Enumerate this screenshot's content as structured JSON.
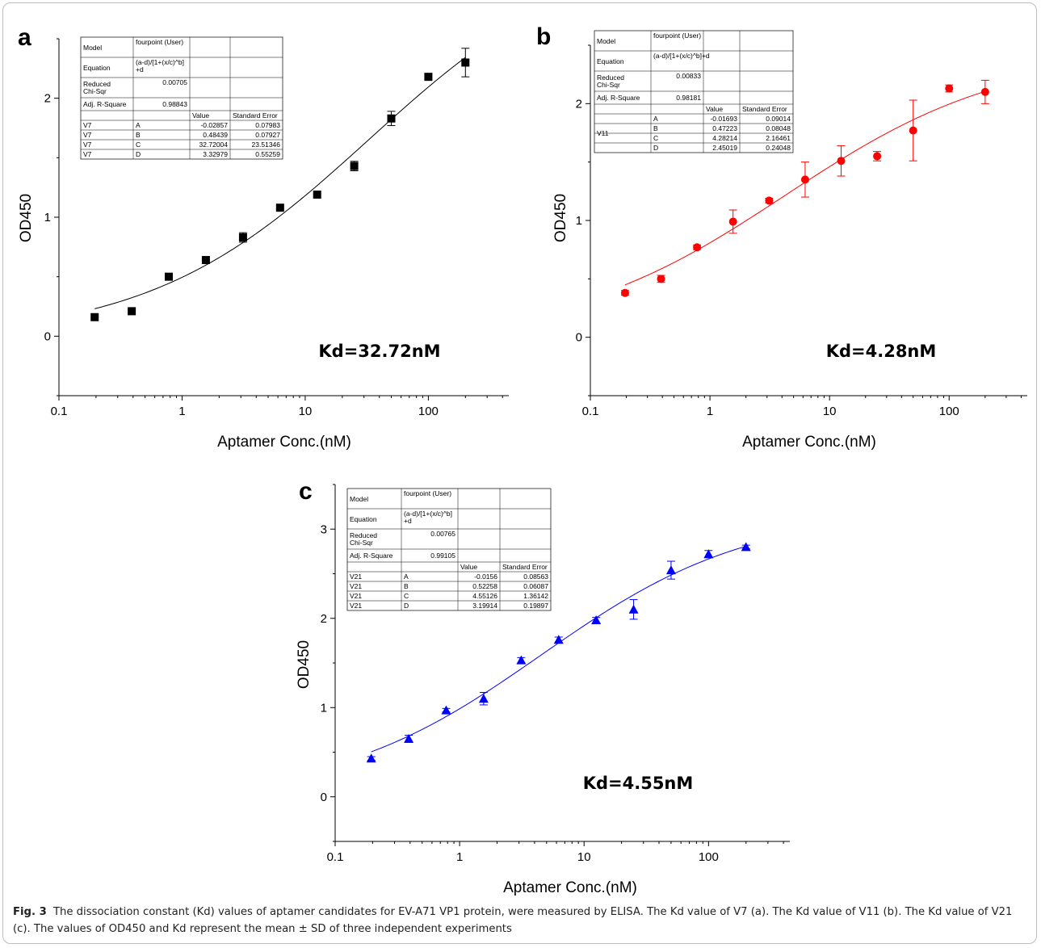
{
  "caption": {
    "label": "Fig. 3",
    "text": "The dissociation constant (Kd) values of aptamer candidates for EV-A71 VP1 protein, were measured by ELISA. The Kd value of V7 (a). The Kd value of V11 (b). The Kd value of V21 (c). The values of OD450 and Kd represent the mean ± SD of three independent experiments"
  },
  "chart_data": [
    {
      "panel": "a",
      "type": "scatter",
      "marker": "square",
      "color": "#000000",
      "xscale": "log",
      "xlabel": "Aptamer Conc.(nM)",
      "ylabel": "OD450",
      "xlim": [
        0.1,
        450
      ],
      "ylim": [
        -0.5,
        2.5
      ],
      "xticks": [
        "0.1",
        "1",
        "10",
        "100"
      ],
      "yticks": [
        "0",
        "1",
        "2"
      ],
      "x": [
        0.195,
        0.39,
        0.78,
        1.56,
        3.125,
        6.25,
        12.5,
        25,
        50,
        100,
        200
      ],
      "y": [
        0.16,
        0.21,
        0.5,
        0.64,
        0.83,
        1.08,
        1.19,
        1.43,
        1.83,
        2.18,
        2.3
      ],
      "error": [
        0,
        0,
        0,
        0,
        0.04,
        0,
        0,
        0.04,
        0.06,
        0,
        0.12
      ],
      "fit": {
        "model": "fourpoint",
        "A": -0.02857,
        "B": 0.48439,
        "C": 32.72004,
        "D": 3.32979
      },
      "annotation": "Kd=32.72nM",
      "fit_table": {
        "model_label": "Model",
        "model_value": "fourpoint (User)",
        "equation_label": "Equation",
        "equation_line1": "(a-d)/[1+(x/c)^b]",
        "equation_line2": "+d",
        "chi_label_1": "Reduced",
        "chi_label_2": "Chi-Sqr",
        "chi_value": "0.00705",
        "r2_label": "Adj. R-Square",
        "r2_value": "0.98843",
        "value_header": "Value",
        "error_header": "Standard Error",
        "rows": [
          {
            "sample": "V7",
            "param": "A",
            "value": "-0.02857",
            "error": "0.07983"
          },
          {
            "sample": "V7",
            "param": "B",
            "value": "0.48439",
            "error": "0.07927"
          },
          {
            "sample": "V7",
            "param": "C",
            "value": "32.72004",
            "error": "23.51346"
          },
          {
            "sample": "V7",
            "param": "D",
            "value": "3.32979",
            "error": "0.55259"
          }
        ]
      }
    },
    {
      "panel": "b",
      "type": "scatter",
      "marker": "circle",
      "color": "#ff0000",
      "xscale": "log",
      "xlabel": "Aptamer Conc.(nM)",
      "ylabel": "OD450",
      "xlim": [
        0.1,
        450
      ],
      "ylim": [
        -0.5,
        2.5
      ],
      "xticks": [
        "0.1",
        "1",
        "10",
        "100"
      ],
      "yticks": [
        "0",
        "1",
        "2"
      ],
      "x": [
        0.195,
        0.39,
        0.78,
        1.56,
        3.125,
        6.25,
        12.5,
        25,
        50,
        100,
        200
      ],
      "y": [
        0.38,
        0.5,
        0.77,
        0.99,
        1.17,
        1.35,
        1.51,
        1.55,
        1.77,
        2.13,
        2.1
      ],
      "error": [
        0.02,
        0.03,
        0.02,
        0.1,
        0.02,
        0.15,
        0.13,
        0.04,
        0.26,
        0.03,
        0.1
      ],
      "fit": {
        "model": "fourpoint",
        "A": -0.01693,
        "B": 0.47223,
        "C": 4.28214,
        "D": 2.45019
      },
      "annotation": "Kd=4.28nM",
      "fit_table": {
        "model_label": "Model",
        "model_value": "fourpoint (User)",
        "equation_label": "Equation",
        "equation_line1": "(a-d)/[1+(x/c)^b]+d",
        "equation_line2": "",
        "chi_label_1": "Reduced",
        "chi_label_2": "Chi-Sqr",
        "chi_value": "0.00833",
        "r2_label": "Adj. R-Square",
        "r2_value": "0.98181",
        "value_header": "Value",
        "error_header": "Standard Error",
        "rows": [
          {
            "sample": "V11",
            "param": "A",
            "value": "-0.01693",
            "error": "0.09014"
          },
          {
            "sample": "",
            "param": "B",
            "value": "0.47223",
            "error": "0.08048"
          },
          {
            "sample": "",
            "param": "C",
            "value": "4.28214",
            "error": "2.16461"
          },
          {
            "sample": "",
            "param": "D",
            "value": "2.45019",
            "error": "0.24048"
          }
        ]
      }
    },
    {
      "panel": "c",
      "type": "scatter",
      "marker": "triangle",
      "color": "#0000ff",
      "xscale": "log",
      "xlabel": "Aptamer Conc.(nM)",
      "ylabel": "OD450",
      "xlim": [
        0.1,
        450
      ],
      "ylim": [
        -0.5,
        3.5
      ],
      "xticks": [
        "0.1",
        "1",
        "10",
        "100"
      ],
      "yticks": [
        "0",
        "1",
        "2",
        "3"
      ],
      "x": [
        0.195,
        0.39,
        0.78,
        1.56,
        3.125,
        6.25,
        12.5,
        25,
        50,
        100,
        200
      ],
      "y": [
        0.43,
        0.65,
        0.97,
        1.1,
        1.53,
        1.76,
        1.98,
        2.1,
        2.54,
        2.72,
        2.8
      ],
      "error": [
        0.02,
        0.04,
        0.02,
        0.07,
        0.03,
        0.03,
        0.03,
        0.11,
        0.1,
        0.04,
        0.02
      ],
      "fit": {
        "model": "fourpoint",
        "A": -0.0156,
        "B": 0.52258,
        "C": 4.55126,
        "D": 3.19914
      },
      "annotation": "Kd=4.55nM",
      "fit_table": {
        "model_label": "Model",
        "model_value": "fourpoint (User)",
        "equation_label": "Equation",
        "equation_line1": "(a-d)/[1+(x/c)^b]",
        "equation_line2": "+d",
        "chi_label_1": "Reduced",
        "chi_label_2": "Chi-Sqr",
        "chi_value": "0.00765",
        "r2_label": "Adj. R-Square",
        "r2_value": "0.99105",
        "value_header": "Value",
        "error_header": "Standard Error",
        "rows": [
          {
            "sample": "V21",
            "param": "A",
            "value": "-0.0156",
            "error": "0.08563"
          },
          {
            "sample": "V21",
            "param": "B",
            "value": "0.52258",
            "error": "0.06087"
          },
          {
            "sample": "V21",
            "param": "C",
            "value": "4.55126",
            "error": "1.36142"
          },
          {
            "sample": "V21",
            "param": "D",
            "value": "3.19914",
            "error": "0.19897"
          }
        ]
      }
    }
  ]
}
